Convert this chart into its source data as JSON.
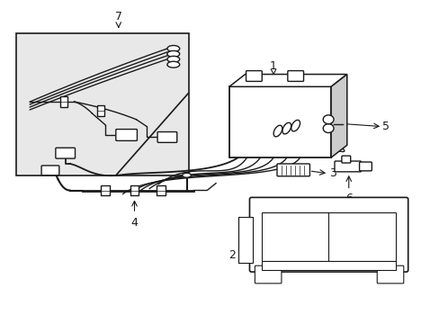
{
  "bg_color": "#ffffff",
  "line_color": "#1a1a1a",
  "inset_bg": "#e8e8e8",
  "fig_width": 4.89,
  "fig_height": 3.6,
  "dpi": 100
}
